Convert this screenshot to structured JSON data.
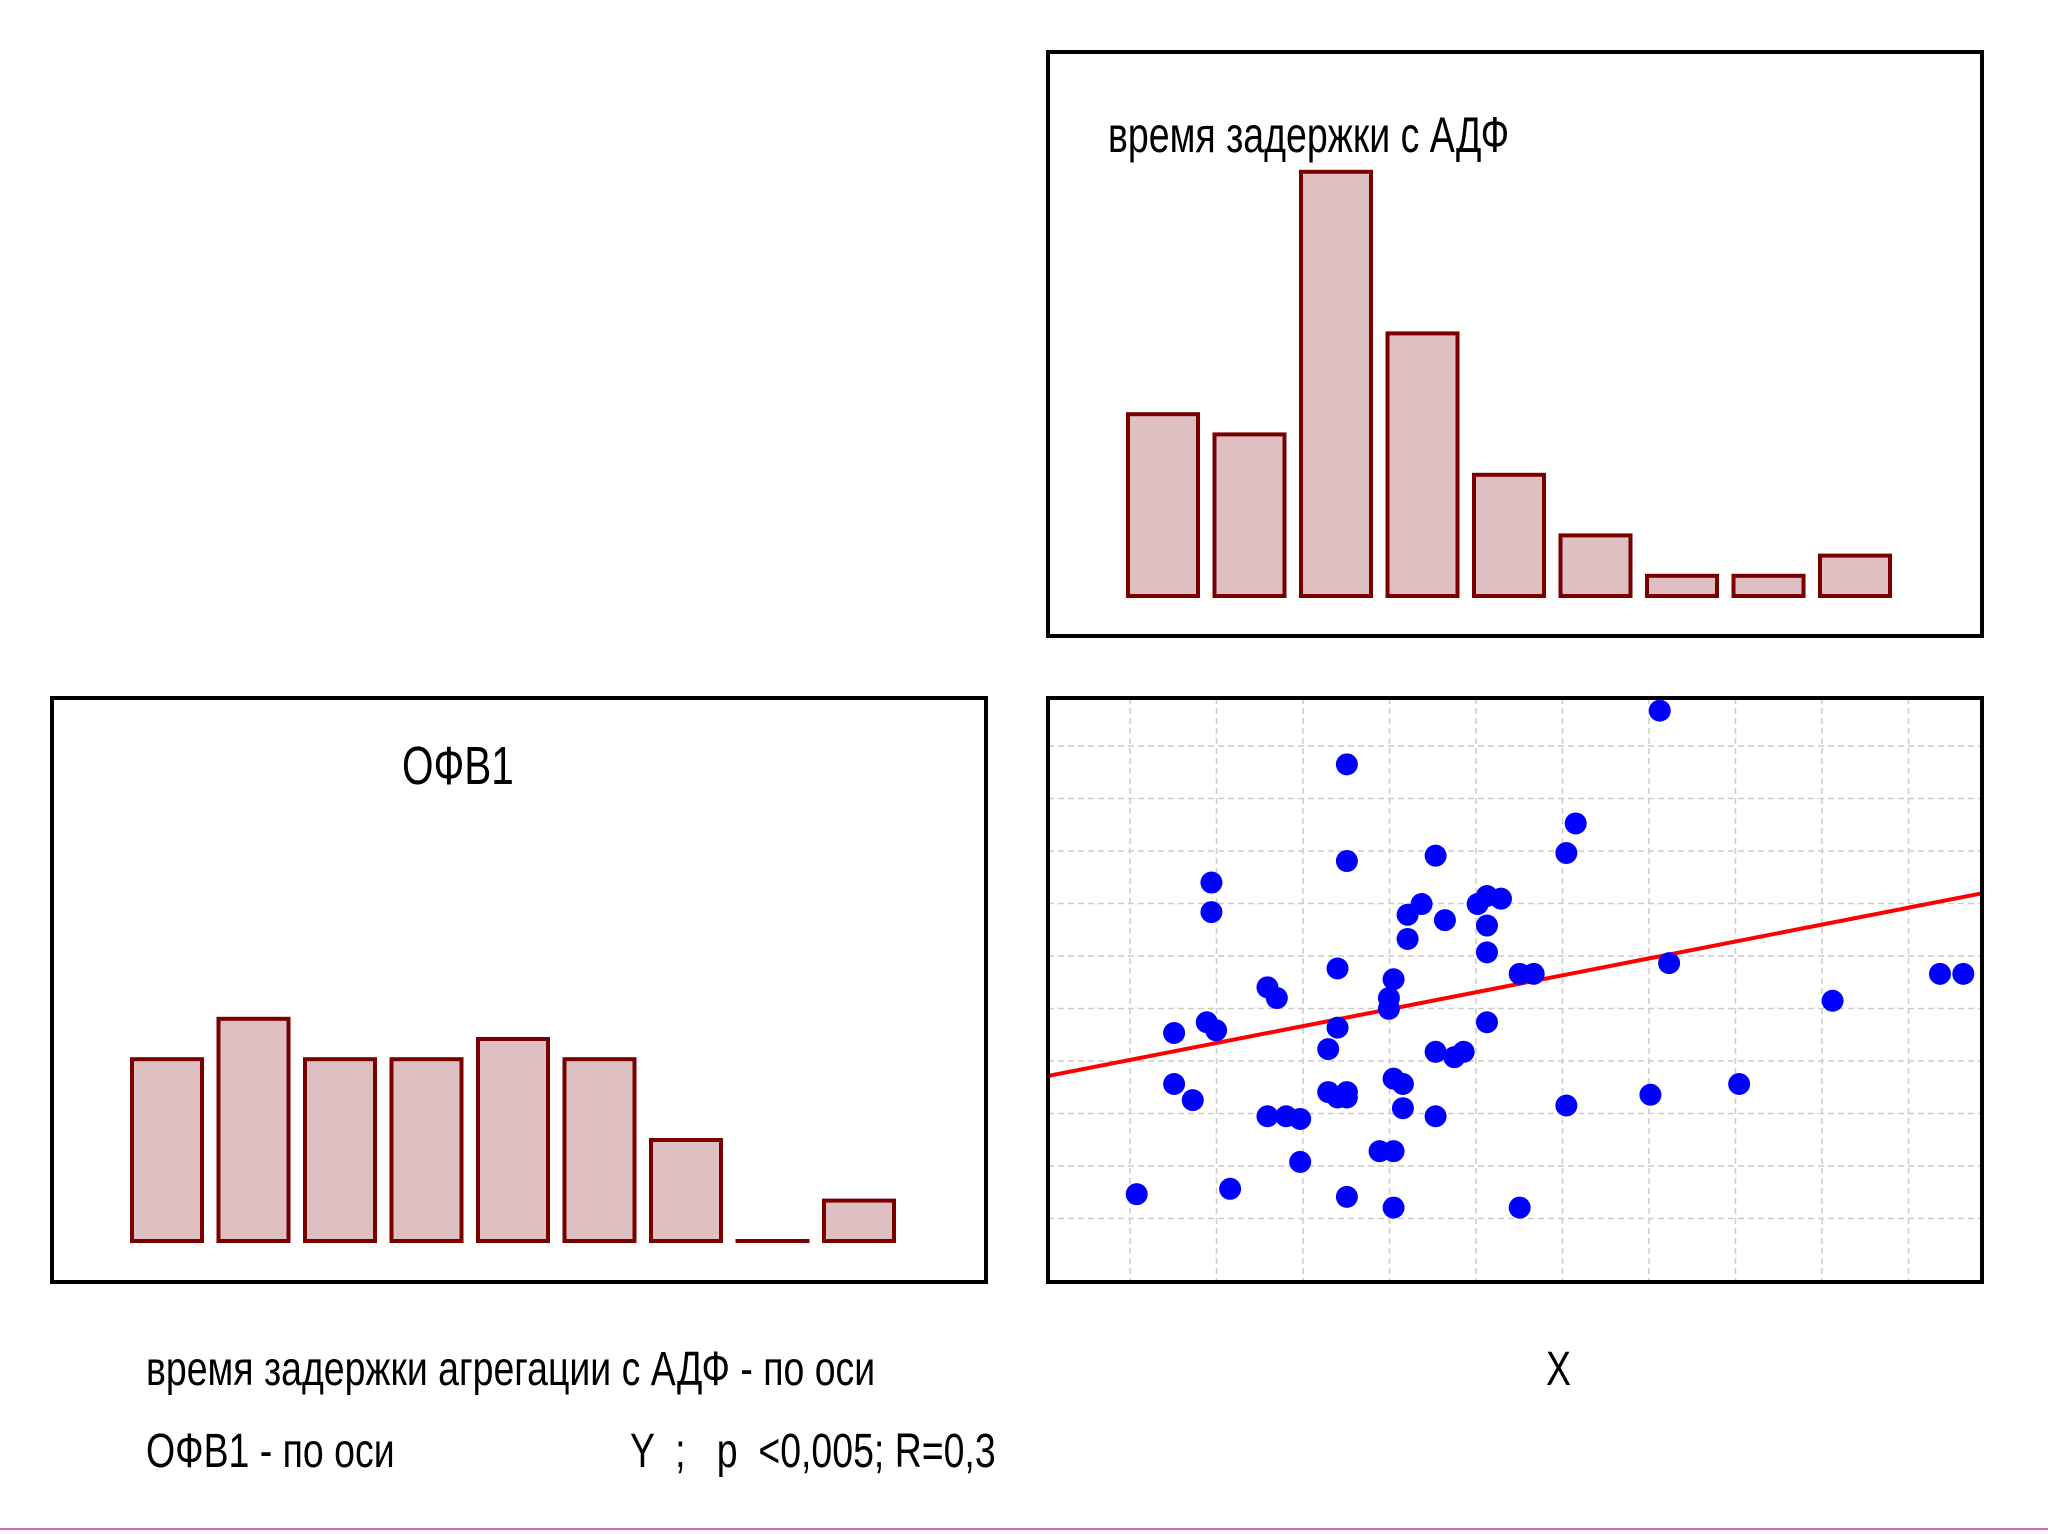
{
  "colors": {
    "bar_fill": "#dfc0c2",
    "bar_stroke": "#7a0000",
    "point": "#0000ff",
    "trend": "#ff0000",
    "grid": "#cccccc",
    "frame": "#000000"
  },
  "captions": {
    "line1": "время задержки агрегации с АДФ - по оси",
    "line2_a": "ОФВ1 - по оси",
    "line2_b": "Y  ;   p  <0,005; R=0,3",
    "x_axis_marker": "X"
  },
  "chart_data": [
    {
      "id": "hist-x",
      "type": "bar",
      "title": "время задержки с АДФ",
      "values": [
        9,
        8,
        21,
        13,
        6,
        3,
        1,
        1,
        2
      ]
    },
    {
      "id": "hist-y",
      "type": "bar",
      "title": "ОФВ1",
      "values": [
        9,
        11,
        9,
        9,
        10,
        9,
        5,
        0,
        2
      ]
    },
    {
      "id": "scatter",
      "type": "scatter",
      "xlim": [
        0,
        10
      ],
      "ylim": [
        0,
        10
      ],
      "grid": true,
      "trend": {
        "x": [
          0,
          10
        ],
        "y": [
          3.4,
          6.8
        ]
      },
      "points": [
        {
          "x": 0.95,
          "y": 1.2
        },
        {
          "x": 1.35,
          "y": 4.2
        },
        {
          "x": 1.35,
          "y": 3.25
        },
        {
          "x": 1.55,
          "y": 2.95
        },
        {
          "x": 1.7,
          "y": 4.4
        },
        {
          "x": 1.8,
          "y": 4.25
        },
        {
          "x": 1.75,
          "y": 7.0
        },
        {
          "x": 1.75,
          "y": 6.45
        },
        {
          "x": 1.95,
          "y": 1.3
        },
        {
          "x": 2.35,
          "y": 5.05
        },
        {
          "x": 2.45,
          "y": 4.85
        },
        {
          "x": 2.35,
          "y": 2.65
        },
        {
          "x": 2.55,
          "y": 2.65
        },
        {
          "x": 2.7,
          "y": 2.6
        },
        {
          "x": 2.7,
          "y": 1.8
        },
        {
          "x": 3.0,
          "y": 3.9
        },
        {
          "x": 3.0,
          "y": 3.1
        },
        {
          "x": 3.1,
          "y": 4.3
        },
        {
          "x": 3.1,
          "y": 5.4
        },
        {
          "x": 3.1,
          "y": 3.0
        },
        {
          "x": 3.2,
          "y": 9.2
        },
        {
          "x": 3.2,
          "y": 7.4
        },
        {
          "x": 3.2,
          "y": 3.1
        },
        {
          "x": 3.2,
          "y": 3.0
        },
        {
          "x": 3.2,
          "y": 1.15
        },
        {
          "x": 3.55,
          "y": 2.0
        },
        {
          "x": 3.65,
          "y": 4.85
        },
        {
          "x": 3.65,
          "y": 4.65
        },
        {
          "x": 3.7,
          "y": 5.2
        },
        {
          "x": 3.7,
          "y": 3.35
        },
        {
          "x": 3.7,
          "y": 2.0
        },
        {
          "x": 3.7,
          "y": 0.95
        },
        {
          "x": 3.8,
          "y": 3.25
        },
        {
          "x": 3.8,
          "y": 2.8
        },
        {
          "x": 3.85,
          "y": 6.4
        },
        {
          "x": 3.85,
          "y": 5.95
        },
        {
          "x": 4.0,
          "y": 6.6
        },
        {
          "x": 4.15,
          "y": 7.5
        },
        {
          "x": 4.15,
          "y": 3.85
        },
        {
          "x": 4.15,
          "y": 2.65
        },
        {
          "x": 4.25,
          "y": 6.3
        },
        {
          "x": 4.35,
          "y": 3.75
        },
        {
          "x": 4.45,
          "y": 3.85
        },
        {
          "x": 4.6,
          "y": 6.6
        },
        {
          "x": 4.7,
          "y": 6.75
        },
        {
          "x": 4.7,
          "y": 6.2
        },
        {
          "x": 4.7,
          "y": 5.7
        },
        {
          "x": 4.7,
          "y": 4.4
        },
        {
          "x": 4.85,
          "y": 6.7
        },
        {
          "x": 5.05,
          "y": 5.3
        },
        {
          "x": 5.2,
          "y": 5.3
        },
        {
          "x": 5.05,
          "y": 0.95
        },
        {
          "x": 5.55,
          "y": 7.55
        },
        {
          "x": 5.65,
          "y": 8.1
        },
        {
          "x": 5.55,
          "y": 2.85
        },
        {
          "x": 6.55,
          "y": 10.2
        },
        {
          "x": 6.65,
          "y": 5.5
        },
        {
          "x": 6.45,
          "y": 3.05
        },
        {
          "x": 7.4,
          "y": 3.25
        },
        {
          "x": 8.4,
          "y": 4.8
        },
        {
          "x": 9.55,
          "y": 5.3
        },
        {
          "x": 9.8,
          "y": 5.3
        }
      ]
    }
  ]
}
